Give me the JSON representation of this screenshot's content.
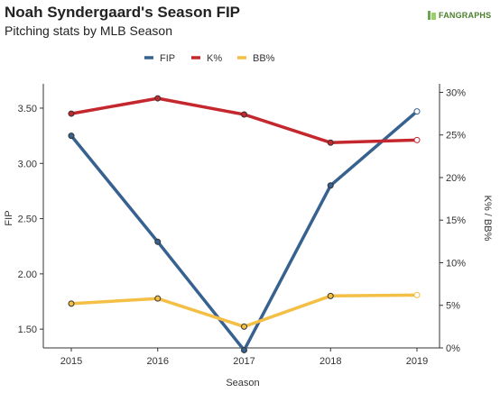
{
  "header": {
    "title": "Noah Syndergaard's Season FIP",
    "subtitle": "Pitching stats by MLB Season",
    "brand": "FANGRAPHS"
  },
  "chart_data": {
    "type": "line",
    "title": "Noah Syndergaard's Season FIP",
    "subtitle": "Pitching stats by MLB Season",
    "xlabel": "Season",
    "ylabel": "FIP",
    "y2label": "K% / BB%",
    "x": [
      2015,
      2016,
      2017,
      2018,
      2019
    ],
    "ylim": [
      1.33,
      3.72
    ],
    "y2lim": [
      0,
      31
    ],
    "yticks": [
      1.5,
      2.0,
      2.5,
      3.0,
      3.5
    ],
    "ytick_labels": [
      "1.50",
      "2.00",
      "2.50",
      "3.00",
      "3.50"
    ],
    "y2ticks": [
      0,
      5,
      10,
      15,
      20,
      25,
      30
    ],
    "y2tick_labels": [
      "0%",
      "5%",
      "10%",
      "15%",
      "20%",
      "25%",
      "30%"
    ],
    "legend_position": "top-center",
    "grid": false,
    "series": [
      {
        "name": "FIP",
        "axis": "left",
        "color": "#37618f",
        "values": [
          3.25,
          2.29,
          1.31,
          2.8,
          3.47
        ]
      },
      {
        "name": "K%",
        "axis": "right",
        "color": "#c4282e",
        "values": [
          27.5,
          29.3,
          27.4,
          24.1,
          24.4
        ]
      },
      {
        "name": "BB%",
        "axis": "right",
        "color": "#f4bf45",
        "values": [
          5.2,
          5.8,
          2.5,
          6.1,
          6.2
        ]
      }
    ]
  }
}
